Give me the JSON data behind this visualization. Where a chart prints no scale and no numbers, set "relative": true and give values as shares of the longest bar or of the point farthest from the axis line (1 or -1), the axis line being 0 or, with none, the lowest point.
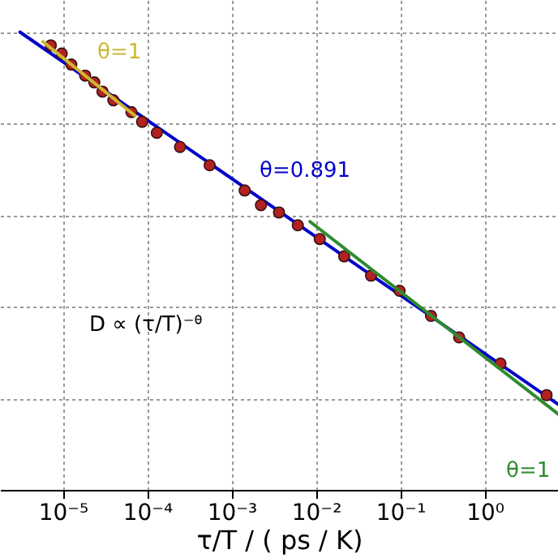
{
  "chart_data": {
    "type": "line",
    "relative": true,
    "log": "x",
    "grid": true,
    "xlabel": "τ/T / ( ps / K)",
    "xlim": [
      1.8e-06,
      7.4
    ],
    "xticks": [
      {
        "value": 1e-05,
        "label": "10⁻⁵"
      },
      {
        "value": 0.0001,
        "label": "10⁻⁴"
      },
      {
        "value": 0.001,
        "label": "10⁻³"
      },
      {
        "value": 0.01,
        "label": "10⁻²"
      },
      {
        "value": 0.1,
        "label": "10⁻¹"
      },
      {
        "value": 1,
        "label": "10⁰"
      }
    ],
    "annotations": [
      "θ=1",
      "θ=0.891",
      "D ∝ (τ/T)⁻ᶿ",
      "θ=1"
    ],
    "series": [
      {
        "color": "#0000cc",
        "x": [
          3.1e-06,
          7.4
        ],
        "values": [
          1.0,
          0.187
        ]
      },
      {
        "type": "scatter",
        "marker": "circle",
        "color": "#b22222",
        "x": [
          7.2e-06,
          9.7e-06,
          1.26e-05,
          1.84e-05,
          2.36e-05,
          2.95e-05,
          3.97e-05,
          6.5e-05,
          8.7e-05,
          0.00013,
          0.000245,
          0.00055,
          0.00143,
          0.00223,
          0.00365,
          0.0061,
          0.0111,
          0.0216,
          0.045,
          0.098,
          0.231,
          0.498,
          1.54,
          5.42
        ],
        "values": [
          0.971,
          0.953,
          0.929,
          0.905,
          0.89,
          0.87,
          0.851,
          0.825,
          0.804,
          0.78,
          0.749,
          0.709,
          0.654,
          0.622,
          0.606,
          0.578,
          0.548,
          0.51,
          0.468,
          0.435,
          0.38,
          0.333,
          0.276,
          0.207
        ]
      },
      {
        "color": "#ccb833",
        "x": [
          5.8e-06,
          7.2e-05
        ],
        "values": [
          0.979,
          0.817
        ]
      },
      {
        "color": "#2e8b2e",
        "x": [
          0.0085,
          7.4
        ],
        "values": [
          0.586,
          0.166
        ]
      }
    ]
  }
}
